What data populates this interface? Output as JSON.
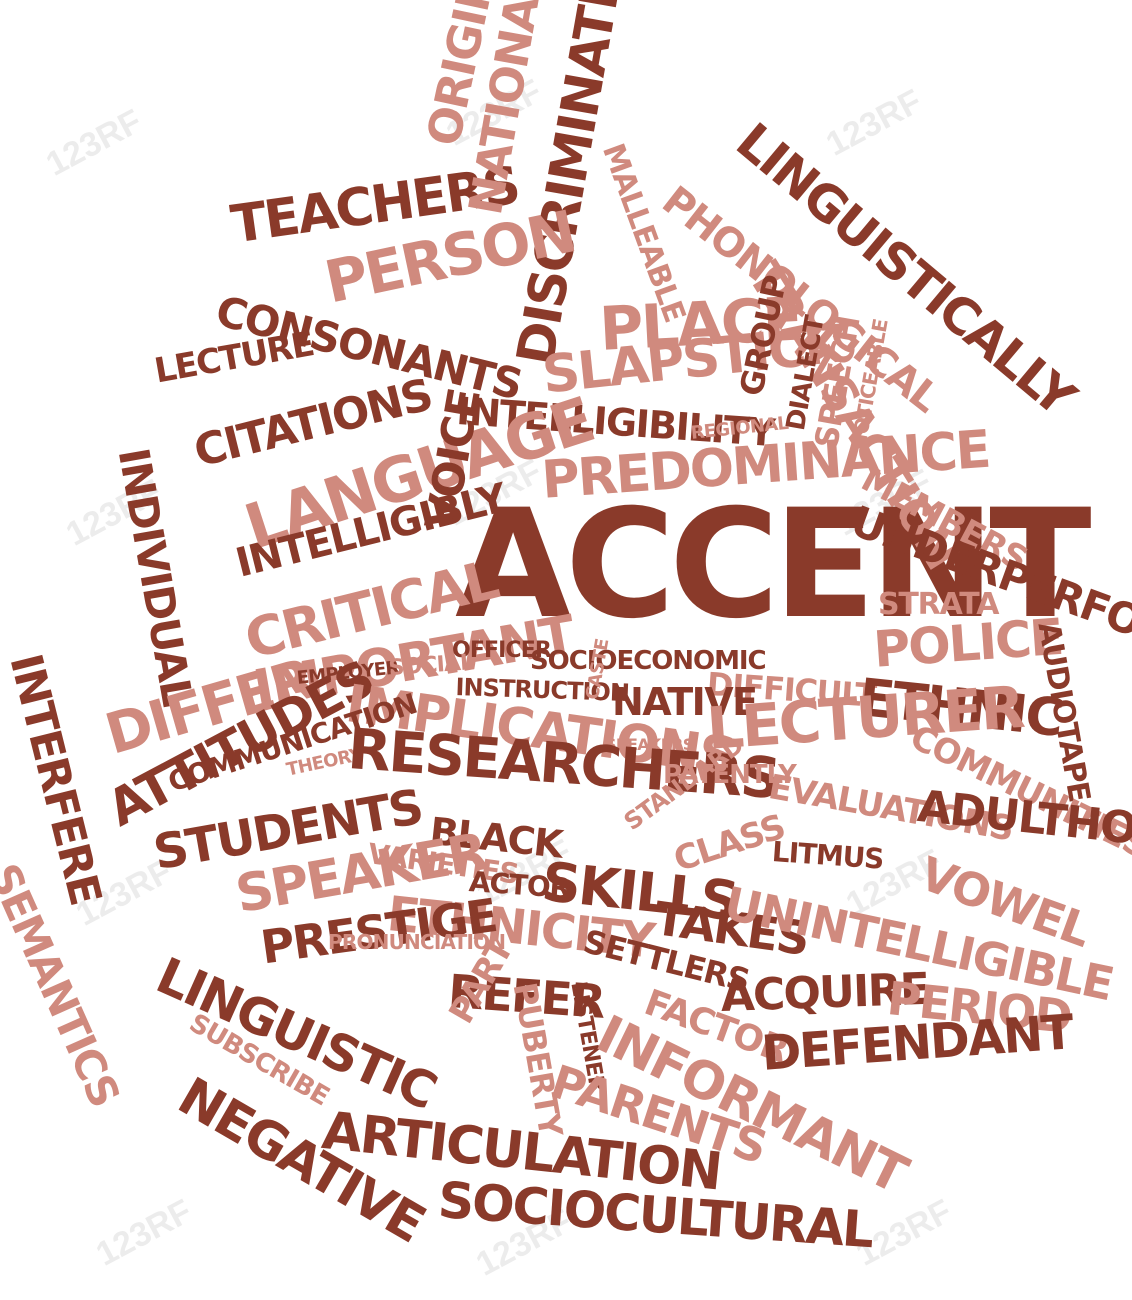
{
  "colors": {
    "dark": "#8a3a2a",
    "light": "#d08a7e",
    "watermark": "#b4b4b4"
  },
  "watermark_text": "123RF",
  "words": [
    {
      "id": "accent",
      "text": "ACCENT",
      "tone": "dark"
    },
    {
      "id": "teachers",
      "text": "TEACHERS",
      "tone": "dark"
    },
    {
      "id": "origin",
      "text": "ORIGIN",
      "tone": "light"
    },
    {
      "id": "nationality",
      "text": "NATIONALITY",
      "tone": "light"
    },
    {
      "id": "discrimination",
      "text": "DISCRIMINATION",
      "tone": "dark"
    },
    {
      "id": "malleable",
      "text": "MALLEABLE",
      "tone": "light"
    },
    {
      "id": "phonological",
      "text": "PHONOLOGICAL",
      "tone": "light"
    },
    {
      "id": "linguistically",
      "text": "LINGUISTICALLY",
      "tone": "dark"
    },
    {
      "id": "transaction",
      "text": "TRANSACTION",
      "tone": "light"
    },
    {
      "id": "person",
      "text": "PERSON",
      "tone": "light"
    },
    {
      "id": "consonants",
      "text": "CONSONANTS",
      "tone": "dark"
    },
    {
      "id": "place",
      "text": "PLACE",
      "tone": "light"
    },
    {
      "id": "slapstick",
      "text": "SLAPSTICK",
      "tone": "light"
    },
    {
      "id": "group",
      "text": "GROUP",
      "tone": "dark"
    },
    {
      "id": "dialect",
      "text": "DIALECT",
      "tone": "dark"
    },
    {
      "id": "speech",
      "text": "SPEECH",
      "tone": "light"
    },
    {
      "id": "noticeable",
      "text": "NOTICEABLE",
      "tone": "light"
    },
    {
      "id": "lecture",
      "text": "LECTURE",
      "tone": "dark"
    },
    {
      "id": "citations",
      "text": "CITATIONS",
      "tone": "dark"
    },
    {
      "id": "intelligibility",
      "text": "INTELLIGIBILITY",
      "tone": "dark"
    },
    {
      "id": "regional",
      "text": "REGIONAL",
      "tone": "light"
    },
    {
      "id": "language",
      "text": "LANGUAGE",
      "tone": "light"
    },
    {
      "id": "predominance",
      "text": "PREDOMINANCE",
      "tone": "light"
    },
    {
      "id": "members",
      "text": "MEMBERS",
      "tone": "light"
    },
    {
      "id": "individual",
      "text": "INDIVIDUAL",
      "tone": "dark"
    },
    {
      "id": "voice",
      "text": "VOICE",
      "tone": "dark"
    },
    {
      "id": "intelligibly",
      "text": "INTELLIGIBLY",
      "tone": "dark"
    },
    {
      "id": "underperform",
      "text": "UNDERPERFORM",
      "tone": "dark"
    },
    {
      "id": "critical",
      "text": "CRITICAL",
      "tone": "light"
    },
    {
      "id": "strata",
      "text": "STRATA",
      "tone": "light"
    },
    {
      "id": "important",
      "text": "IMPORTANT",
      "tone": "light"
    },
    {
      "id": "police",
      "text": "POLICE",
      "tone": "light"
    },
    {
      "id": "audiotape",
      "text": "AUDIOTAPE",
      "tone": "dark"
    },
    {
      "id": "differ",
      "text": "DIFFER",
      "tone": "light"
    },
    {
      "id": "officer",
      "text": "OFFICER",
      "tone": "dark"
    },
    {
      "id": "socioeconomic",
      "text": "SOCIOECONOMIC",
      "tone": "dark"
    },
    {
      "id": "employer",
      "text": "EMPLOYER",
      "tone": "dark"
    },
    {
      "id": "social",
      "text": "SOCIAL",
      "tone": "light"
    },
    {
      "id": "instruction",
      "text": "INSTRUCTION",
      "tone": "dark"
    },
    {
      "id": "difficult",
      "text": "DIFFICULT",
      "tone": "light"
    },
    {
      "id": "ethnic",
      "text": "ETHNIC",
      "tone": "dark"
    },
    {
      "id": "interfere",
      "text": "INTERFERE",
      "tone": "dark"
    },
    {
      "id": "attitudes",
      "text": "ATTITUDES",
      "tone": "dark"
    },
    {
      "id": "implications",
      "text": "IMPLICATIONS",
      "tone": "light"
    },
    {
      "id": "caste",
      "text": "CASTE",
      "tone": "light"
    },
    {
      "id": "native",
      "text": "NATIVE",
      "tone": "dark"
    },
    {
      "id": "lecturer",
      "text": "LECTURER",
      "tone": "light"
    },
    {
      "id": "communication",
      "text": "COMMUNICATION",
      "tone": "dark"
    },
    {
      "id": "speakers",
      "text": "SPEAKERS",
      "tone": "light"
    },
    {
      "id": "communities",
      "text": "COMMUNITIES",
      "tone": "light"
    },
    {
      "id": "theory",
      "text": "THEORY",
      "tone": "light"
    },
    {
      "id": "researchers",
      "text": "RESEARCHERS",
      "tone": "dark"
    },
    {
      "id": "patently",
      "text": "PATENTLY",
      "tone": "light"
    },
    {
      "id": "students",
      "text": "STUDENTS",
      "tone": "dark"
    },
    {
      "id": "evaluations",
      "text": "EVALUATIONS",
      "tone": "light"
    },
    {
      "id": "adulthood",
      "text": "ADULTHOOD",
      "tone": "dark"
    },
    {
      "id": "black",
      "text": "BLACK",
      "tone": "dark"
    },
    {
      "id": "standard",
      "text": "STANDARD",
      "tone": "light"
    },
    {
      "id": "class",
      "text": "CLASS",
      "tone": "light"
    },
    {
      "id": "litmus",
      "text": "LITMUS",
      "tone": "dark"
    },
    {
      "id": "skills",
      "text": "SKILLS",
      "tone": "dark"
    },
    {
      "id": "varieties",
      "text": "VARIETIES",
      "tone": "light"
    },
    {
      "id": "actor",
      "text": "ACTOR",
      "tone": "dark"
    },
    {
      "id": "vowel",
      "text": "VOWEL",
      "tone": "light"
    },
    {
      "id": "speaker",
      "text": "SPEAKER",
      "tone": "light"
    },
    {
      "id": "ethnicity",
      "text": "ETHNICITY",
      "tone": "light"
    },
    {
      "id": "takes",
      "text": "TAKES",
      "tone": "dark"
    },
    {
      "id": "unintelligible",
      "text": "UNINTELLIGIBLE",
      "tone": "light"
    },
    {
      "id": "semantics",
      "text": "SEMANTICS",
      "tone": "light"
    },
    {
      "id": "prestige",
      "text": "PRESTIGE",
      "tone": "dark"
    },
    {
      "id": "pronunciation",
      "text": "PRONUNCIATION",
      "tone": "light"
    },
    {
      "id": "settlers",
      "text": "SETTLERS",
      "tone": "dark"
    },
    {
      "id": "linguistic",
      "text": "LINGUISTIC",
      "tone": "dark"
    },
    {
      "id": "refer",
      "text": "REFER",
      "tone": "dark"
    },
    {
      "id": "acquire",
      "text": "ACQUIRE",
      "tone": "dark"
    },
    {
      "id": "period",
      "text": "PERIOD",
      "tone": "light"
    },
    {
      "id": "subscribe",
      "text": "SUBSCRIBE",
      "tone": "light"
    },
    {
      "id": "puberty",
      "text": "PUBERTY",
      "tone": "light"
    },
    {
      "id": "listener",
      "text": "LISTENER",
      "tone": "dark"
    },
    {
      "id": "factor",
      "text": "FACTOR",
      "tone": "light"
    },
    {
      "id": "part",
      "text": "PART",
      "tone": "light"
    },
    {
      "id": "informant",
      "text": "INFORMANT",
      "tone": "light"
    },
    {
      "id": "defendant",
      "text": "DEFENDANT",
      "tone": "dark"
    },
    {
      "id": "negative",
      "text": "NEGATIVE",
      "tone": "dark"
    },
    {
      "id": "parents",
      "text": "PARENTS",
      "tone": "light"
    },
    {
      "id": "articulation",
      "text": "ARTICULATION",
      "tone": "dark"
    },
    {
      "id": "sociocultural",
      "text": "SOCIOCULTURAL",
      "tone": "dark"
    }
  ]
}
